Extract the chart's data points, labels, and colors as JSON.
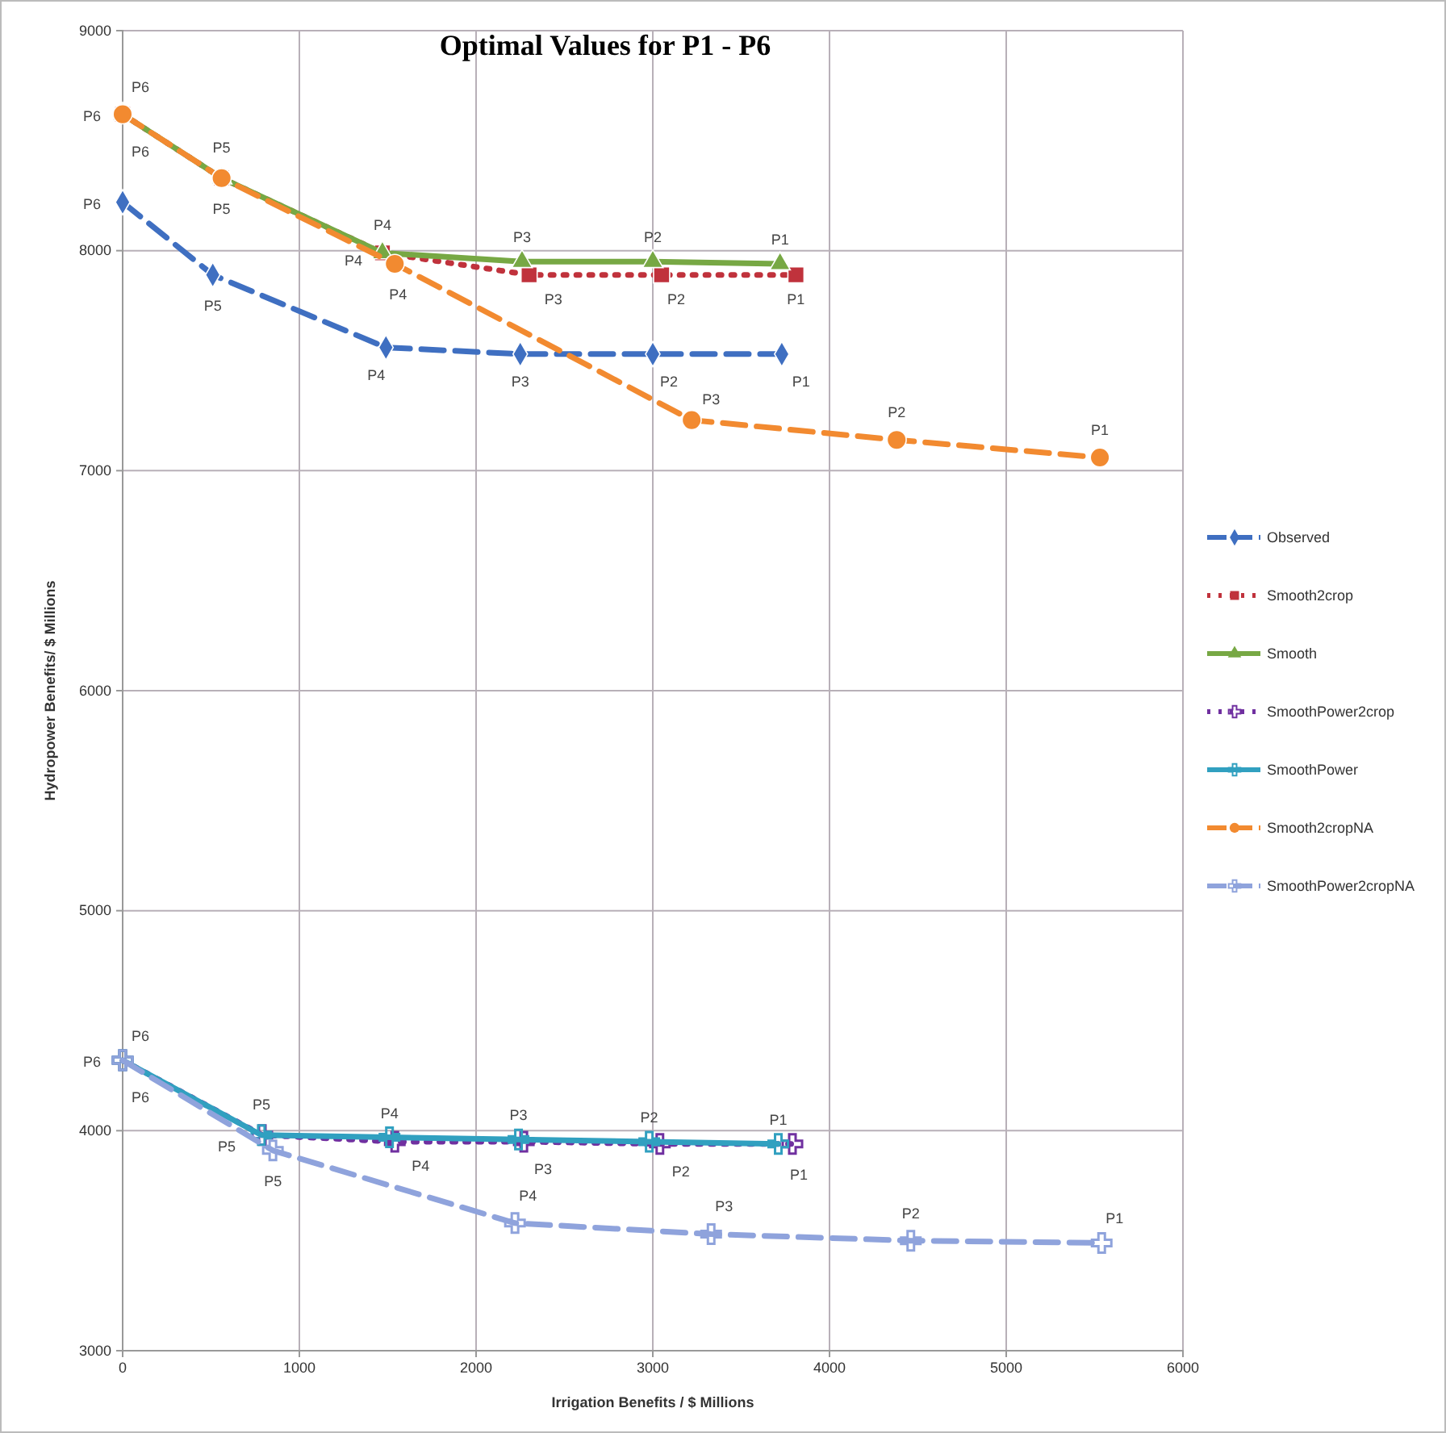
{
  "chart_data": {
    "type": "line",
    "title": "Optimal Values for P1 - P6",
    "xlabel": "Irrigation Benefits / $ Millions",
    "ylabel": "Hydropower Benefits/ $ Millions",
    "xlim": [
      0,
      6000
    ],
    "xticks": [
      0,
      1000,
      2000,
      3000,
      4000,
      5000,
      6000
    ],
    "ylim": [
      3000,
      9000
    ],
    "yticks": [
      3000,
      4000,
      5000,
      6000,
      7000,
      8000,
      9000
    ],
    "grid": true,
    "legend": "right",
    "series": [
      {
        "name": "Observed",
        "color": "#3f6fc1",
        "marker": "diamond",
        "line_style": "dashed",
        "x": [
          0,
          510,
          1490,
          2250,
          3000,
          3730
        ],
        "values": [
          8220,
          7890,
          7560,
          7530,
          7530,
          7530
        ],
        "value_labels": [
          "P6",
          "P5",
          "P4",
          "P3",
          "P2",
          "P1"
        ]
      },
      {
        "name": "Smooth2crop",
        "color": "#c0323c",
        "marker": "square",
        "line_style": "dotted",
        "x": [
          0,
          560,
          1470,
          2300,
          3050,
          3810
        ],
        "values": [
          8620,
          8330,
          7990,
          7890,
          7890,
          7890
        ],
        "value_labels": [
          "P6",
          "P5",
          "P4",
          "P3",
          "P2",
          "P1"
        ]
      },
      {
        "name": "Smooth",
        "color": "#77a844",
        "marker": "triangle",
        "line_style": "solid",
        "x": [
          0,
          560,
          1470,
          2260,
          3000,
          3720
        ],
        "values": [
          8620,
          8330,
          7990,
          7950,
          7950,
          7940
        ],
        "value_labels": [
          "P6",
          "P5",
          "P4",
          "P3",
          "P2",
          "P1"
        ]
      },
      {
        "name": "SmoothPower2crop",
        "color": "#7030a0",
        "marker": "cross",
        "line_style": "dotted",
        "x": [
          0,
          790,
          1540,
          2270,
          3040,
          3790
        ],
        "values": [
          4320,
          3980,
          3950,
          3950,
          3940,
          3940
        ],
        "value_labels": [
          "P6",
          "P5",
          "P4",
          "P3",
          "P2",
          "P1"
        ]
      },
      {
        "name": "SmoothPower",
        "color": "#31a0c0",
        "marker": "cross",
        "line_style": "solid",
        "x": [
          0,
          785,
          1510,
          2240,
          2980,
          3710
        ],
        "values": [
          4320,
          3980,
          3970,
          3960,
          3950,
          3940
        ],
        "value_labels": [
          "P6",
          "P5",
          "P4",
          "P3",
          "P2",
          "P1"
        ]
      },
      {
        "name": "Smooth2cropNA",
        "color": "#f28a30",
        "marker": "circle",
        "line_style": "dashed",
        "x": [
          0,
          560,
          1540,
          3220,
          4380,
          5530
        ],
        "values": [
          8620,
          8330,
          7940,
          7230,
          7140,
          7060
        ],
        "value_labels": [
          "P6",
          null,
          "P4",
          "P3",
          "P2",
          "P1"
        ]
      },
      {
        "name": "SmoothPower2cropNA",
        "color": "#8fa3dc",
        "marker": "cross",
        "line_style": "dashed",
        "x": [
          0,
          850,
          2220,
          3330,
          4460,
          5540
        ],
        "values": [
          4320,
          3910,
          3580,
          3530,
          3500,
          3490
        ],
        "value_labels": [
          "P6",
          "P5",
          "P4",
          "P3",
          "P2",
          "P1"
        ]
      }
    ]
  }
}
